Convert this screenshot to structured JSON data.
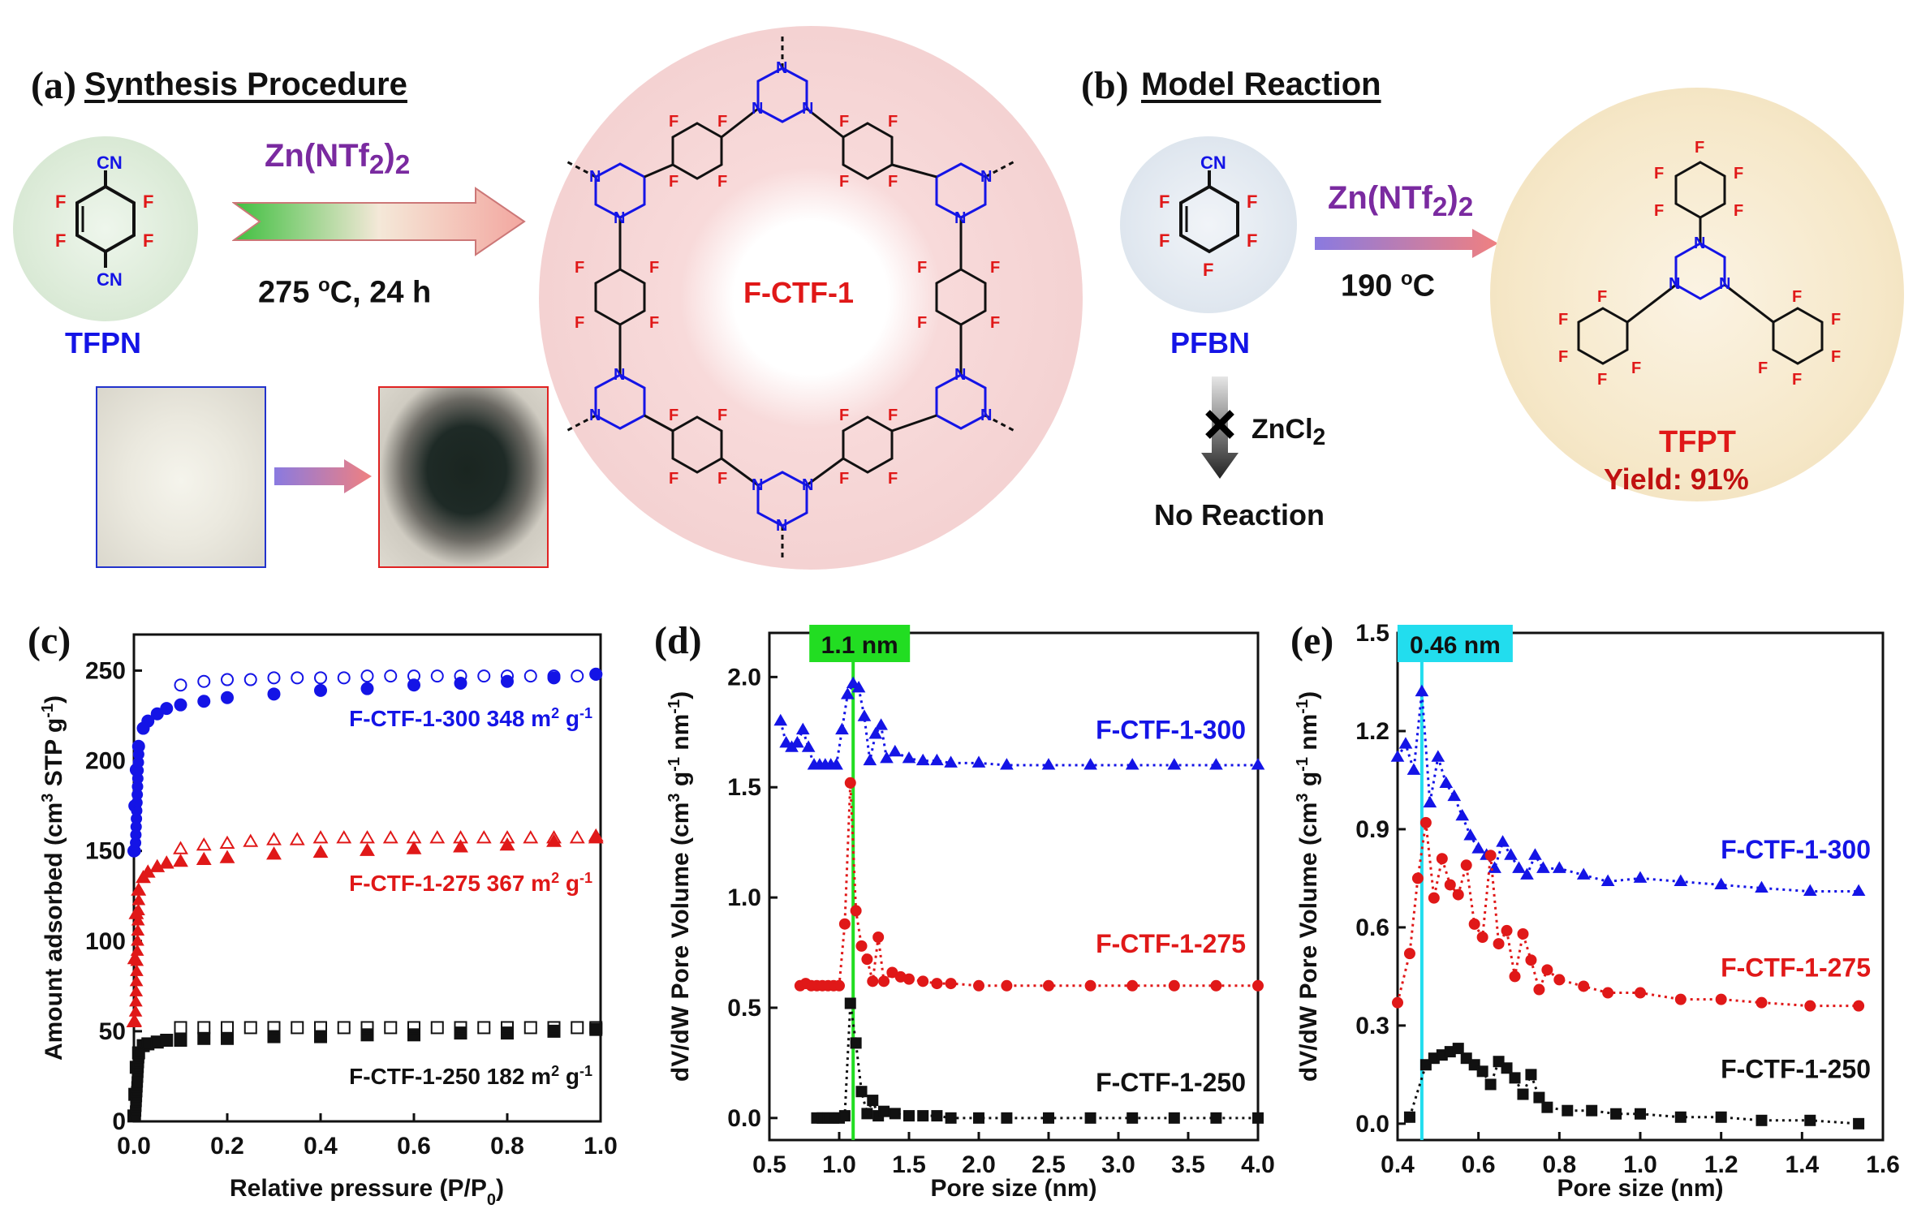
{
  "panel_a": {
    "label": "(a)",
    "title": "Synthesis Procedure",
    "monomer": {
      "name": "TFPN",
      "cn": "CN",
      "f": "F"
    },
    "reagent_main": "Zn(NTf",
    "reagent_sub": "2",
    "reagent_close": ")",
    "reagent_sub2": "2",
    "condition_temp": "275 ",
    "condition_deg": "o",
    "condition_rest": "C, 24 h",
    "product": "F-CTF-1",
    "triazine_n": "N",
    "photo_before": "white-powder-photo",
    "photo_after": "black-powder-photo"
  },
  "panel_b": {
    "label": "(b)",
    "title": "Model Reaction",
    "reactant": {
      "name": "PFBN",
      "cn": "CN",
      "f": "F"
    },
    "reagent_main": "Zn(NTf",
    "reagent_sub": "2",
    "reagent_close": ")",
    "reagent_sub2": "2",
    "condition_temp": "190 ",
    "condition_deg": "o",
    "condition_rest": "C",
    "fail_reagent": "ZnCl",
    "fail_reagent_sub": "2",
    "fail_result": "No Reaction",
    "product": "TFPT",
    "yield": "Yield: 91%",
    "triazine_n": "N",
    "f": "F"
  },
  "chart_data": [
    {
      "panel": "(c)",
      "type": "scatter",
      "xlabel": "Relative pressure (P/P0)",
      "ylabel": "Amount adsorbed (cm3 STP g-1)",
      "xlim": [
        0.0,
        1.0
      ],
      "ylim": [
        0,
        270
      ],
      "xticks": [
        0.0,
        0.2,
        0.4,
        0.6,
        0.8,
        1.0
      ],
      "yticks": [
        0,
        50,
        100,
        150,
        200,
        250
      ],
      "series": [
        {
          "name": "F-CTF-1-300",
          "label": "F-CTF-1-300 348 m2 g-1",
          "color": "#1414e6",
          "marker": "circle",
          "adsorption_x": [
            0.0,
            0.002,
            0.005,
            0.01,
            0.02,
            0.03,
            0.05,
            0.07,
            0.1,
            0.15,
            0.2,
            0.3,
            0.4,
            0.5,
            0.6,
            0.7,
            0.8,
            0.9,
            0.99
          ],
          "adsorption_y": [
            150,
            175,
            195,
            208,
            218,
            222,
            226,
            229,
            231,
            233,
            235,
            237,
            239,
            240,
            242,
            243,
            244,
            246,
            248
          ],
          "desorption_x": [
            0.1,
            0.15,
            0.2,
            0.25,
            0.3,
            0.35,
            0.4,
            0.45,
            0.5,
            0.55,
            0.6,
            0.65,
            0.7,
            0.75,
            0.8,
            0.85,
            0.9,
            0.95,
            0.99
          ],
          "desorption_y": [
            242,
            244,
            245,
            245,
            246,
            246,
            246,
            246,
            247,
            247,
            247,
            247,
            247,
            247,
            247,
            247,
            247,
            247,
            248
          ]
        },
        {
          "name": "F-CTF-1-275",
          "label": "F-CTF-1-275 367 m2 g-1",
          "color": "#e01818",
          "marker": "triangle",
          "adsorption_x": [
            0.0,
            0.002,
            0.005,
            0.01,
            0.02,
            0.03,
            0.05,
            0.07,
            0.1,
            0.15,
            0.2,
            0.3,
            0.4,
            0.5,
            0.6,
            0.7,
            0.8,
            0.9,
            0.99
          ],
          "adsorption_y": [
            55,
            90,
            115,
            128,
            135,
            138,
            141,
            143,
            144,
            145,
            146,
            148,
            149,
            150,
            151,
            152,
            153,
            155,
            157
          ],
          "desorption_x": [
            0.1,
            0.15,
            0.2,
            0.25,
            0.3,
            0.35,
            0.4,
            0.45,
            0.5,
            0.55,
            0.6,
            0.65,
            0.7,
            0.75,
            0.8,
            0.85,
            0.9,
            0.95,
            0.99
          ],
          "desorption_y": [
            151,
            153,
            154,
            155,
            156,
            156,
            157,
            157,
            157,
            157,
            157,
            157,
            157,
            157,
            157,
            157,
            157,
            157,
            158
          ]
        },
        {
          "name": "F-CTF-1-250",
          "label": "F-CTF-1-250 182 m2 g-1",
          "color": "#111111",
          "marker": "square",
          "adsorption_x": [
            0.0,
            0.002,
            0.005,
            0.01,
            0.02,
            0.03,
            0.05,
            0.07,
            0.1,
            0.15,
            0.2,
            0.3,
            0.4,
            0.5,
            0.6,
            0.7,
            0.8,
            0.9,
            0.99
          ],
          "adsorption_y": [
            3,
            15,
            30,
            38,
            42,
            43,
            44,
            45,
            45,
            46,
            46,
            47,
            47,
            48,
            48,
            49,
            49,
            50,
            51
          ],
          "desorption_x": [
            0.1,
            0.15,
            0.2,
            0.25,
            0.3,
            0.35,
            0.4,
            0.45,
            0.5,
            0.55,
            0.6,
            0.65,
            0.7,
            0.75,
            0.8,
            0.85,
            0.9,
            0.95,
            0.99
          ],
          "desorption_y": [
            52,
            52,
            52,
            52,
            52,
            52,
            52,
            52,
            52,
            52,
            52,
            52,
            52,
            52,
            52,
            52,
            52,
            52,
            52
          ]
        }
      ]
    },
    {
      "panel": "(d)",
      "type": "line",
      "xlabel": "Pore size (nm)",
      "ylabel": "dV/dW Pore Volume (cm3 g-1 nm-1)",
      "xlim": [
        0.5,
        4.0
      ],
      "ylim": [
        -0.1,
        2.2
      ],
      "xticks": [
        0.5,
        1.0,
        1.5,
        2.0,
        2.5,
        3.0,
        3.5,
        4.0
      ],
      "yticks": [
        0.0,
        0.5,
        1.0,
        1.5,
        2.0
      ],
      "marker_line": {
        "x": 1.1,
        "label": "1.1 nm",
        "color": "#22dd22"
      },
      "series": [
        {
          "name": "F-CTF-1-300",
          "color": "#1414e6",
          "marker": "triangle",
          "x": [
            0.58,
            0.62,
            0.66,
            0.7,
            0.74,
            0.78,
            0.82,
            0.86,
            0.9,
            0.94,
            0.98,
            1.02,
            1.06,
            1.1,
            1.14,
            1.18,
            1.22,
            1.26,
            1.3,
            1.34,
            1.4,
            1.5,
            1.6,
            1.7,
            1.8,
            2.0,
            2.2,
            2.5,
            2.8,
            3.1,
            3.4,
            3.7,
            4.0
          ],
          "y": [
            1.8,
            1.7,
            1.68,
            1.7,
            1.76,
            1.68,
            1.6,
            1.6,
            1.6,
            1.6,
            1.6,
            1.76,
            1.92,
            1.97,
            1.95,
            1.82,
            1.62,
            1.74,
            1.78,
            1.63,
            1.66,
            1.63,
            1.62,
            1.62,
            1.61,
            1.61,
            1.6,
            1.6,
            1.6,
            1.6,
            1.6,
            1.6,
            1.6
          ],
          "label": "F-CTF-1-300"
        },
        {
          "name": "F-CTF-1-275",
          "color": "#e01818",
          "marker": "circle",
          "x": [
            0.72,
            0.76,
            0.8,
            0.84,
            0.88,
            0.92,
            0.96,
            1.0,
            1.04,
            1.08,
            1.12,
            1.16,
            1.2,
            1.24,
            1.28,
            1.32,
            1.38,
            1.44,
            1.5,
            1.6,
            1.7,
            1.8,
            2.0,
            2.2,
            2.5,
            2.8,
            3.1,
            3.4,
            3.7,
            4.0
          ],
          "y": [
            0.6,
            0.61,
            0.6,
            0.6,
            0.6,
            0.6,
            0.6,
            0.6,
            0.88,
            1.52,
            0.94,
            0.78,
            0.72,
            0.62,
            0.82,
            0.62,
            0.66,
            0.64,
            0.63,
            0.62,
            0.61,
            0.61,
            0.6,
            0.6,
            0.6,
            0.6,
            0.6,
            0.6,
            0.6,
            0.6
          ],
          "label": "F-CTF-1-275"
        },
        {
          "name": "F-CTF-1-250",
          "color": "#111111",
          "marker": "square",
          "x": [
            0.84,
            0.88,
            0.92,
            0.96,
            1.0,
            1.04,
            1.08,
            1.12,
            1.16,
            1.2,
            1.24,
            1.28,
            1.32,
            1.4,
            1.5,
            1.6,
            1.7,
            1.8,
            2.0,
            2.2,
            2.5,
            2.8,
            3.1,
            3.4,
            3.7,
            4.0
          ],
          "y": [
            0.0,
            0.0,
            0.0,
            0.0,
            0.0,
            0.01,
            0.52,
            0.34,
            0.12,
            0.02,
            0.08,
            0.01,
            0.03,
            0.02,
            0.01,
            0.01,
            0.01,
            0.0,
            0.0,
            0.0,
            0.0,
            0.0,
            0.0,
            0.0,
            0.0,
            0.0
          ],
          "label": "F-CTF-1-250"
        }
      ]
    },
    {
      "panel": "(e)",
      "type": "line",
      "xlabel": "Pore size (nm)",
      "ylabel": "dV/dW Pore Volume (cm3 g-1 nm-1)",
      "xlim": [
        0.4,
        1.6
      ],
      "ylim": [
        -0.05,
        1.5
      ],
      "xticks": [
        0.4,
        0.6,
        0.8,
        1.0,
        1.2,
        1.4,
        1.6
      ],
      "yticks": [
        0.0,
        0.3,
        0.6,
        0.9,
        1.2,
        1.5
      ],
      "marker_line": {
        "x": 0.46,
        "label": "0.46 nm",
        "color": "#22ddee"
      },
      "series": [
        {
          "name": "F-CTF-1-300",
          "color": "#1414e6",
          "marker": "triangle",
          "x": [
            0.4,
            0.42,
            0.44,
            0.46,
            0.48,
            0.5,
            0.52,
            0.54,
            0.56,
            0.58,
            0.6,
            0.62,
            0.64,
            0.66,
            0.68,
            0.7,
            0.72,
            0.74,
            0.76,
            0.8,
            0.86,
            0.92,
            1.0,
            1.1,
            1.2,
            1.3,
            1.42,
            1.54
          ],
          "y": [
            1.12,
            1.16,
            1.08,
            1.32,
            0.98,
            1.12,
            1.04,
            1.0,
            0.94,
            0.88,
            0.84,
            0.82,
            0.78,
            0.86,
            0.82,
            0.78,
            0.76,
            0.82,
            0.78,
            0.78,
            0.76,
            0.74,
            0.75,
            0.74,
            0.73,
            0.72,
            0.71,
            0.71
          ],
          "label": "F-CTF-1-300"
        },
        {
          "name": "F-CTF-1-275",
          "color": "#e01818",
          "marker": "circle",
          "x": [
            0.4,
            0.43,
            0.45,
            0.47,
            0.49,
            0.51,
            0.53,
            0.55,
            0.57,
            0.59,
            0.61,
            0.63,
            0.65,
            0.67,
            0.69,
            0.71,
            0.73,
            0.75,
            0.77,
            0.8,
            0.86,
            0.92,
            1.0,
            1.1,
            1.2,
            1.3,
            1.42,
            1.54
          ],
          "y": [
            0.37,
            0.52,
            0.75,
            0.92,
            0.69,
            0.81,
            0.73,
            0.7,
            0.79,
            0.61,
            0.57,
            0.82,
            0.55,
            0.59,
            0.45,
            0.58,
            0.5,
            0.41,
            0.47,
            0.44,
            0.42,
            0.4,
            0.4,
            0.38,
            0.38,
            0.37,
            0.36,
            0.36
          ],
          "label": "F-CTF-1-275"
        },
        {
          "name": "F-CTF-1-250",
          "color": "#111111",
          "marker": "square",
          "x": [
            0.43,
            0.47,
            0.49,
            0.51,
            0.53,
            0.55,
            0.57,
            0.59,
            0.61,
            0.63,
            0.65,
            0.67,
            0.69,
            0.71,
            0.73,
            0.75,
            0.77,
            0.82,
            0.88,
            0.94,
            1.0,
            1.1,
            1.2,
            1.3,
            1.42,
            1.54
          ],
          "y": [
            0.02,
            0.18,
            0.2,
            0.21,
            0.22,
            0.23,
            0.2,
            0.18,
            0.16,
            0.12,
            0.19,
            0.17,
            0.14,
            0.09,
            0.15,
            0.08,
            0.05,
            0.04,
            0.04,
            0.03,
            0.03,
            0.02,
            0.02,
            0.01,
            0.01,
            0.0
          ],
          "label": "F-CTF-1-250"
        }
      ]
    }
  ]
}
